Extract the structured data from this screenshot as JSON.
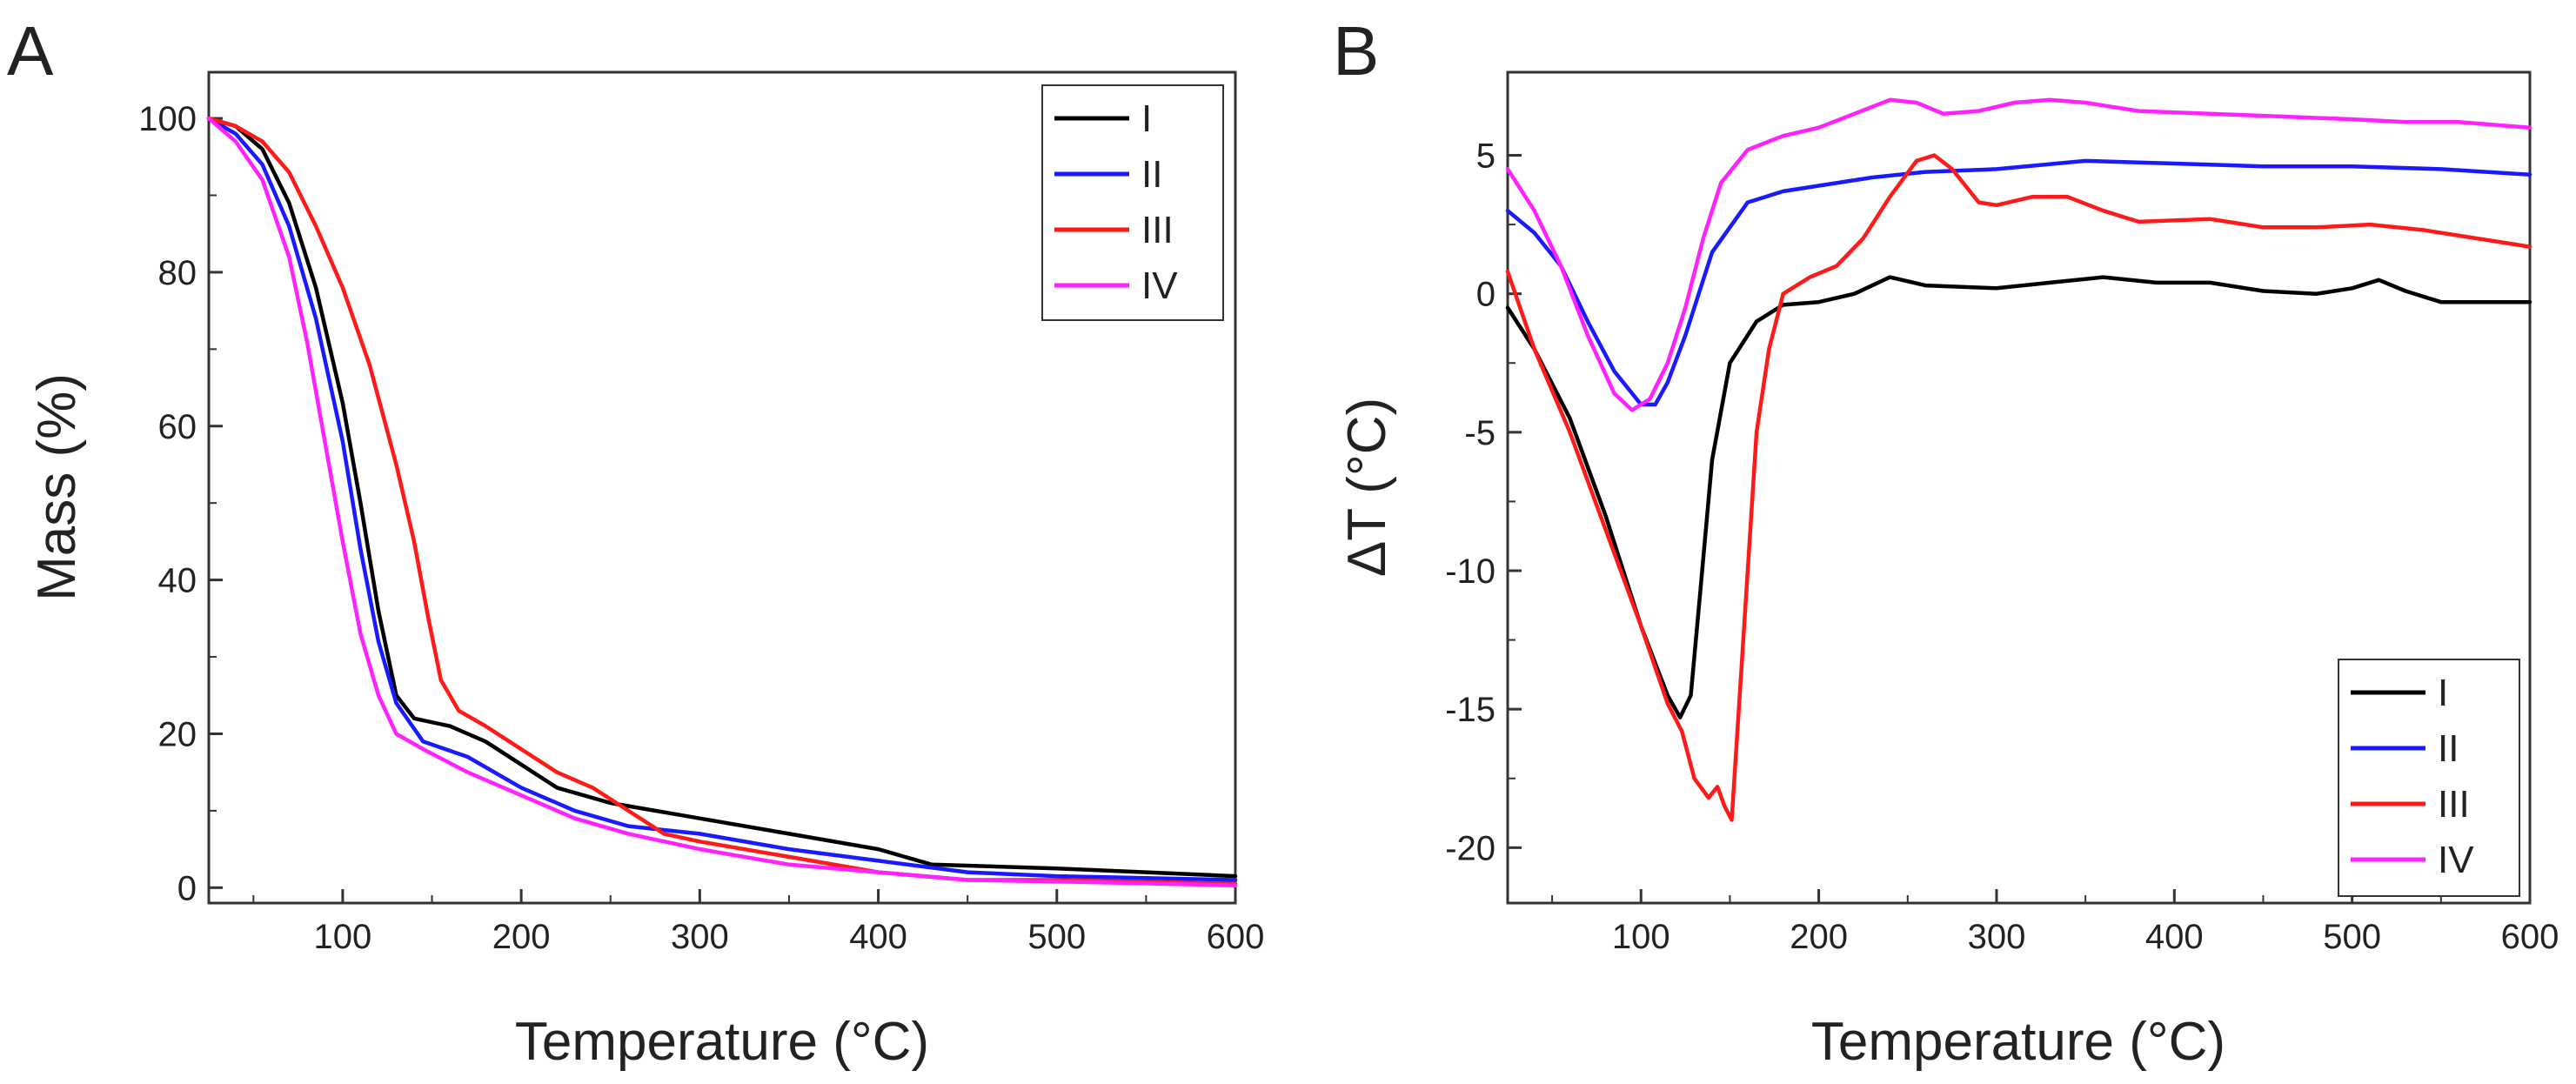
{
  "figure": {
    "panels": [
      "A",
      "B"
    ]
  },
  "chart_data": [
    {
      "type": "line",
      "panel": "A",
      "xlabel": "Temperature (°C)",
      "ylabel": "Mass (%)",
      "xlim": [
        25,
        600
      ],
      "ylim": [
        -2,
        106
      ],
      "xticks": [
        100,
        200,
        300,
        400,
        500,
        600
      ],
      "yticks": [
        0,
        20,
        40,
        60,
        80,
        100
      ],
      "legend_position": "top-right",
      "series": [
        {
          "name": "I",
          "color": "#000000",
          "points": [
            [
              25,
              100
            ],
            [
              40,
              99
            ],
            [
              55,
              96
            ],
            [
              70,
              89
            ],
            [
              85,
              78
            ],
            [
              100,
              63
            ],
            [
              110,
              50
            ],
            [
              120,
              36
            ],
            [
              130,
              25
            ],
            [
              140,
              22
            ],
            [
              160,
              21
            ],
            [
              180,
              19
            ],
            [
              200,
              16
            ],
            [
              220,
              13
            ],
            [
              250,
              11
            ],
            [
              300,
              9
            ],
            [
              350,
              7
            ],
            [
              400,
              5
            ],
            [
              430,
              3
            ],
            [
              500,
              2.5
            ],
            [
              550,
              2
            ],
            [
              600,
              1.5
            ]
          ]
        },
        {
          "name": "II",
          "color": "#1a1aff",
          "points": [
            [
              25,
              100
            ],
            [
              40,
              98
            ],
            [
              55,
              94
            ],
            [
              70,
              86
            ],
            [
              85,
              74
            ],
            [
              100,
              58
            ],
            [
              110,
              44
            ],
            [
              120,
              32
            ],
            [
              130,
              24
            ],
            [
              145,
              19
            ],
            [
              170,
              17
            ],
            [
              200,
              13
            ],
            [
              230,
              10
            ],
            [
              260,
              8
            ],
            [
              300,
              7
            ],
            [
              350,
              5
            ],
            [
              400,
              3.5
            ],
            [
              450,
              2
            ],
            [
              500,
              1.5
            ],
            [
              600,
              1
            ]
          ]
        },
        {
          "name": "III",
          "color": "#ff1a1a",
          "points": [
            [
              25,
              100
            ],
            [
              40,
              99
            ],
            [
              55,
              97
            ],
            [
              70,
              93
            ],
            [
              85,
              86
            ],
            [
              100,
              78
            ],
            [
              115,
              68
            ],
            [
              130,
              55
            ],
            [
              140,
              45
            ],
            [
              148,
              35
            ],
            [
              155,
              27
            ],
            [
              165,
              23
            ],
            [
              180,
              21
            ],
            [
              200,
              18
            ],
            [
              220,
              15
            ],
            [
              240,
              13
            ],
            [
              260,
              10
            ],
            [
              280,
              7
            ],
            [
              300,
              6
            ],
            [
              350,
              4
            ],
            [
              400,
              2
            ],
            [
              450,
              1
            ],
            [
              500,
              1
            ],
            [
              600,
              0.5
            ]
          ]
        },
        {
          "name": "IV",
          "color": "#ff22ff",
          "points": [
            [
              25,
              100
            ],
            [
              40,
              97
            ],
            [
              55,
              92
            ],
            [
              70,
              82
            ],
            [
              80,
              71
            ],
            [
              90,
              58
            ],
            [
              100,
              45
            ],
            [
              110,
              33
            ],
            [
              120,
              25
            ],
            [
              130,
              20
            ],
            [
              145,
              18
            ],
            [
              170,
              15
            ],
            [
              200,
              12
            ],
            [
              230,
              9
            ],
            [
              260,
              7
            ],
            [
              300,
              5
            ],
            [
              350,
              3
            ],
            [
              400,
              2
            ],
            [
              450,
              1
            ],
            [
              500,
              0.8
            ],
            [
              600,
              0.3
            ]
          ]
        }
      ]
    },
    {
      "type": "line",
      "panel": "B",
      "xlabel": "Temperature (°C)",
      "ylabel": "ΔT (°C)",
      "xlim": [
        25,
        600
      ],
      "ylim": [
        -22,
        8
      ],
      "xticks": [
        100,
        200,
        300,
        400,
        500,
        600
      ],
      "yticks": [
        5,
        0,
        -5,
        -10,
        -15,
        -20
      ],
      "legend_position": "bottom-right",
      "series": [
        {
          "name": "I",
          "color": "#000000",
          "points": [
            [
              25,
              -0.5
            ],
            [
              40,
              -2
            ],
            [
              60,
              -4.5
            ],
            [
              80,
              -8
            ],
            [
              100,
              -12
            ],
            [
              115,
              -14.5
            ],
            [
              122,
              -15.3
            ],
            [
              128,
              -14.5
            ],
            [
              133,
              -11
            ],
            [
              140,
              -6
            ],
            [
              150,
              -2.5
            ],
            [
              165,
              -1
            ],
            [
              180,
              -0.4
            ],
            [
              200,
              -0.3
            ],
            [
              220,
              0
            ],
            [
              240,
              0.6
            ],
            [
              260,
              0.3
            ],
            [
              300,
              0.2
            ],
            [
              330,
              0.4
            ],
            [
              360,
              0.6
            ],
            [
              390,
              0.4
            ],
            [
              420,
              0.4
            ],
            [
              450,
              0.1
            ],
            [
              480,
              0
            ],
            [
              500,
              0.2
            ],
            [
              515,
              0.5
            ],
            [
              530,
              0.1
            ],
            [
              550,
              -0.3
            ],
            [
              600,
              -0.3
            ]
          ]
        },
        {
          "name": "II",
          "color": "#1a1aff",
          "points": [
            [
              25,
              3
            ],
            [
              40,
              2.2
            ],
            [
              55,
              1
            ],
            [
              70,
              -1
            ],
            [
              85,
              -2.8
            ],
            [
              100,
              -4
            ],
            [
              108,
              -4
            ],
            [
              115,
              -3.2
            ],
            [
              125,
              -1.5
            ],
            [
              140,
              1.5
            ],
            [
              160,
              3.3
            ],
            [
              180,
              3.7
            ],
            [
              200,
              3.9
            ],
            [
              230,
              4.2
            ],
            [
              260,
              4.4
            ],
            [
              300,
              4.5
            ],
            [
              350,
              4.8
            ],
            [
              400,
              4.7
            ],
            [
              450,
              4.6
            ],
            [
              500,
              4.6
            ],
            [
              550,
              4.5
            ],
            [
              600,
              4.3
            ]
          ]
        },
        {
          "name": "III",
          "color": "#ff1a1a",
          "points": [
            [
              25,
              0.8
            ],
            [
              40,
              -2
            ],
            [
              60,
              -5
            ],
            [
              80,
              -8.5
            ],
            [
              100,
              -12
            ],
            [
              115,
              -14.8
            ],
            [
              123,
              -15.8
            ],
            [
              130,
              -17.5
            ],
            [
              138,
              -18.2
            ],
            [
              143,
              -17.8
            ],
            [
              147,
              -18.5
            ],
            [
              151,
              -19
            ],
            [
              155,
              -15
            ],
            [
              160,
              -10
            ],
            [
              165,
              -5
            ],
            [
              172,
              -2
            ],
            [
              180,
              0
            ],
            [
              195,
              0.6
            ],
            [
              210,
              1
            ],
            [
              225,
              2
            ],
            [
              240,
              3.5
            ],
            [
              255,
              4.8
            ],
            [
              265,
              5
            ],
            [
              275,
              4.5
            ],
            [
              290,
              3.3
            ],
            [
              300,
              3.2
            ],
            [
              320,
              3.5
            ],
            [
              340,
              3.5
            ],
            [
              360,
              3
            ],
            [
              380,
              2.6
            ],
            [
              420,
              2.7
            ],
            [
              450,
              2.4
            ],
            [
              480,
              2.4
            ],
            [
              510,
              2.5
            ],
            [
              540,
              2.3
            ],
            [
              570,
              2
            ],
            [
              600,
              1.7
            ]
          ]
        },
        {
          "name": "IV",
          "color": "#ff22ff",
          "points": [
            [
              25,
              4.5
            ],
            [
              40,
              3
            ],
            [
              55,
              1
            ],
            [
              70,
              -1.5
            ],
            [
              85,
              -3.6
            ],
            [
              95,
              -4.2
            ],
            [
              105,
              -3.8
            ],
            [
              115,
              -2.5
            ],
            [
              125,
              -0.5
            ],
            [
              135,
              2
            ],
            [
              145,
              4
            ],
            [
              160,
              5.2
            ],
            [
              180,
              5.7
            ],
            [
              200,
              6
            ],
            [
              220,
              6.5
            ],
            [
              240,
              7
            ],
            [
              255,
              6.9
            ],
            [
              270,
              6.5
            ],
            [
              290,
              6.6
            ],
            [
              310,
              6.9
            ],
            [
              330,
              7
            ],
            [
              350,
              6.9
            ],
            [
              380,
              6.6
            ],
            [
              420,
              6.5
            ],
            [
              460,
              6.4
            ],
            [
              500,
              6.3
            ],
            [
              530,
              6.2
            ],
            [
              560,
              6.2
            ],
            [
              600,
              6
            ]
          ]
        }
      ]
    }
  ]
}
